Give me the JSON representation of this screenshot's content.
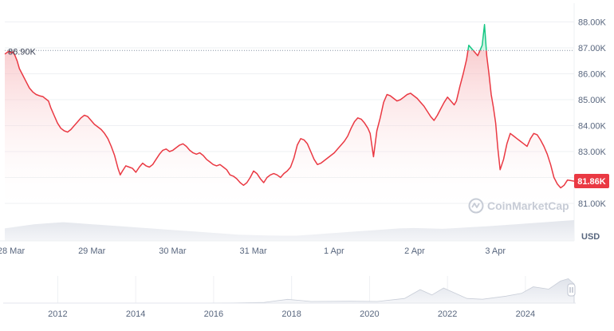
{
  "chart_data": [
    {
      "type": "line",
      "title": "",
      "xlabel": "",
      "ylabel": "",
      "currency_unit": "USD",
      "x_tick_labels": [
        "28 Mar",
        "29 Mar",
        "30 Mar",
        "31 Mar",
        "1 Apr",
        "2 Apr",
        "3 Apr"
      ],
      "y_tick_labels": [
        "88.00K",
        "87.00K",
        "86.00K",
        "85.00K",
        "84.00K",
        "83.00K",
        "82.00K",
        "81.00K"
      ],
      "ylim": [
        80600,
        88600
      ],
      "grid": true,
      "reference_line": {
        "value": 86900,
        "label": "86.90K"
      },
      "last_price": {
        "value": 81860,
        "label": "81.86K"
      },
      "colors": {
        "up": "#16c784",
        "down": "#ea3943",
        "fill_top": "#f8c9cb",
        "badge": "#ea3943"
      },
      "watermark": "CoinMarketCap",
      "series": [
        {
          "points": [
            [
              0.0,
              86760
            ],
            [
              0.2,
              86820
            ],
            [
              0.4,
              86880
            ],
            [
              0.5,
              86810
            ],
            [
              0.7,
              86850
            ],
            [
              0.9,
              86720
            ],
            [
              1.1,
              86500
            ],
            [
              1.3,
              86200
            ],
            [
              1.6,
              85950
            ],
            [
              1.9,
              85700
            ],
            [
              2.2,
              85450
            ],
            [
              2.5,
              85300
            ],
            [
              2.8,
              85200
            ],
            [
              3.1,
              85150
            ],
            [
              3.4,
              85120
            ],
            [
              3.6,
              85050
            ],
            [
              3.9,
              84950
            ],
            [
              4.1,
              84700
            ],
            [
              4.4,
              84400
            ],
            [
              4.7,
              84100
            ],
            [
              5.0,
              83900
            ],
            [
              5.3,
              83800
            ],
            [
              5.6,
              83750
            ],
            [
              5.9,
              83850
            ],
            [
              6.2,
              84000
            ],
            [
              6.5,
              84150
            ],
            [
              6.8,
              84300
            ],
            [
              7.1,
              84400
            ],
            [
              7.4,
              84350
            ],
            [
              7.7,
              84200
            ],
            [
              8.0,
              84050
            ],
            [
              8.3,
              83950
            ],
            [
              8.6,
              83850
            ],
            [
              8.9,
              83700
            ],
            [
              9.2,
              83500
            ],
            [
              9.5,
              83200
            ],
            [
              9.8,
              82850
            ],
            [
              10.1,
              82350
            ],
            [
              10.3,
              82100
            ],
            [
              10.5,
              82250
            ],
            [
              10.8,
              82450
            ],
            [
              11.1,
              82400
            ],
            [
              11.4,
              82350
            ],
            [
              11.7,
              82200
            ],
            [
              12.0,
              82400
            ],
            [
              12.3,
              82550
            ],
            [
              12.6,
              82450
            ],
            [
              12.9,
              82400
            ],
            [
              13.2,
              82500
            ],
            [
              13.5,
              82700
            ],
            [
              13.8,
              82900
            ],
            [
              14.1,
              83050
            ],
            [
              14.4,
              83100
            ],
            [
              14.7,
              83000
            ],
            [
              15.0,
              83050
            ],
            [
              15.3,
              83150
            ],
            [
              15.6,
              83250
            ],
            [
              15.9,
              83300
            ],
            [
              16.2,
              83200
            ],
            [
              16.5,
              83050
            ],
            [
              16.8,
              82950
            ],
            [
              17.1,
              82900
            ],
            [
              17.4,
              82950
            ],
            [
              17.7,
              82850
            ],
            [
              18.0,
              82700
            ],
            [
              18.3,
              82600
            ],
            [
              18.6,
              82500
            ],
            [
              18.9,
              82450
            ],
            [
              19.2,
              82500
            ],
            [
              19.5,
              82400
            ],
            [
              19.8,
              82300
            ],
            [
              20.1,
              82100
            ],
            [
              20.4,
              82050
            ],
            [
              20.7,
              81950
            ],
            [
              21.0,
              81800
            ],
            [
              21.3,
              81700
            ],
            [
              21.6,
              81800
            ],
            [
              21.9,
              82000
            ],
            [
              22.2,
              82250
            ],
            [
              22.5,
              82150
            ],
            [
              22.8,
              81950
            ],
            [
              23.1,
              81800
            ],
            [
              23.4,
              82000
            ],
            [
              23.7,
              82100
            ],
            [
              24.0,
              82150
            ],
            [
              24.3,
              82100
            ],
            [
              24.6,
              82000
            ],
            [
              24.9,
              82150
            ],
            [
              25.2,
              82250
            ],
            [
              25.5,
              82400
            ],
            [
              25.8,
              82750
            ],
            [
              26.1,
              83250
            ],
            [
              26.4,
              83500
            ],
            [
              26.7,
              83450
            ],
            [
              27.0,
              83300
            ],
            [
              27.3,
              83000
            ],
            [
              27.6,
              82700
            ],
            [
              27.9,
              82500
            ],
            [
              28.2,
              82550
            ],
            [
              28.5,
              82650
            ],
            [
              28.8,
              82750
            ],
            [
              29.1,
              82850
            ],
            [
              29.4,
              82950
            ],
            [
              29.7,
              83100
            ],
            [
              30.0,
              83250
            ],
            [
              30.3,
              83400
            ],
            [
              30.6,
              83600
            ],
            [
              30.9,
              83900
            ],
            [
              31.2,
              84150
            ],
            [
              31.5,
              84300
            ],
            [
              31.8,
              84250
            ],
            [
              32.1,
              84100
            ],
            [
              32.4,
              83900
            ],
            [
              32.6,
              83700
            ],
            [
              32.9,
              82800
            ],
            [
              33.2,
              83800
            ],
            [
              33.5,
              84300
            ],
            [
              33.8,
              84900
            ],
            [
              34.1,
              85200
            ],
            [
              34.4,
              85150
            ],
            [
              34.7,
              85050
            ],
            [
              35.0,
              84950
            ],
            [
              35.3,
              85000
            ],
            [
              35.6,
              85100
            ],
            [
              35.9,
              85200
            ],
            [
              36.2,
              85250
            ],
            [
              36.5,
              85150
            ],
            [
              36.8,
              85050
            ],
            [
              37.1,
              84900
            ],
            [
              37.4,
              84750
            ],
            [
              37.7,
              84550
            ],
            [
              38.0,
              84350
            ],
            [
              38.3,
              84200
            ],
            [
              38.6,
              84400
            ],
            [
              38.9,
              84650
            ],
            [
              39.2,
              84900
            ],
            [
              39.5,
              85100
            ],
            [
              39.8,
              84950
            ],
            [
              40.1,
              84800
            ],
            [
              40.3,
              84950
            ],
            [
              40.6,
              85500
            ],
            [
              40.9,
              86000
            ],
            [
              41.2,
              86550
            ],
            [
              41.4,
              87100
            ],
            [
              41.6,
              87000
            ],
            [
              41.8,
              86900
            ],
            [
              42.0,
              86800
            ],
            [
              42.2,
              86700
            ],
            [
              42.4,
              86900
            ],
            [
              42.6,
              87100
            ],
            [
              42.8,
              87900
            ],
            [
              43.0,
              86700
            ],
            [
              43.2,
              86000
            ],
            [
              43.4,
              85200
            ],
            [
              43.6,
              84700
            ],
            [
              43.8,
              84100
            ],
            [
              44.0,
              83100
            ],
            [
              44.2,
              82300
            ],
            [
              44.5,
              82700
            ],
            [
              44.8,
              83300
            ],
            [
              45.1,
              83700
            ],
            [
              45.4,
              83600
            ],
            [
              45.7,
              83500
            ],
            [
              46.0,
              83400
            ],
            [
              46.3,
              83300
            ],
            [
              46.6,
              83200
            ],
            [
              46.9,
              83500
            ],
            [
              47.2,
              83700
            ],
            [
              47.5,
              83650
            ],
            [
              47.8,
              83450
            ],
            [
              48.1,
              83200
            ],
            [
              48.4,
              82900
            ],
            [
              48.7,
              82500
            ],
            [
              49.0,
              82000
            ],
            [
              49.3,
              81750
            ],
            [
              49.6,
              81600
            ],
            [
              49.9,
              81700
            ],
            [
              50.2,
              81900
            ],
            [
              50.5,
              81880
            ],
            [
              50.8,
              81860
            ]
          ]
        }
      ]
    },
    {
      "type": "area",
      "title": "",
      "x_tick_labels": [
        "2012",
        "2014",
        "2016",
        "2018",
        "2020",
        "2022",
        "2024"
      ],
      "series": [
        {
          "points": [
            [
              2010.6,
              0
            ],
            [
              2011.5,
              0
            ],
            [
              2012.5,
              0
            ],
            [
              2013.5,
              200
            ],
            [
              2014.5,
              500
            ],
            [
              2015.5,
              300
            ],
            [
              2016.5,
              600
            ],
            [
              2017.3,
              3000
            ],
            [
              2017.9,
              16000
            ],
            [
              2018.5,
              7000
            ],
            [
              2019.5,
              8000
            ],
            [
              2020.2,
              7000
            ],
            [
              2020.9,
              20000
            ],
            [
              2021.3,
              58000
            ],
            [
              2021.6,
              35000
            ],
            [
              2021.9,
              65000
            ],
            [
              2022.5,
              20000
            ],
            [
              2022.9,
              16500
            ],
            [
              2023.5,
              30000
            ],
            [
              2023.9,
              42000
            ],
            [
              2024.2,
              70000
            ],
            [
              2024.6,
              60000
            ],
            [
              2024.9,
              95000
            ],
            [
              2025.1,
              105000
            ],
            [
              2025.25,
              82000
            ]
          ]
        }
      ]
    }
  ]
}
